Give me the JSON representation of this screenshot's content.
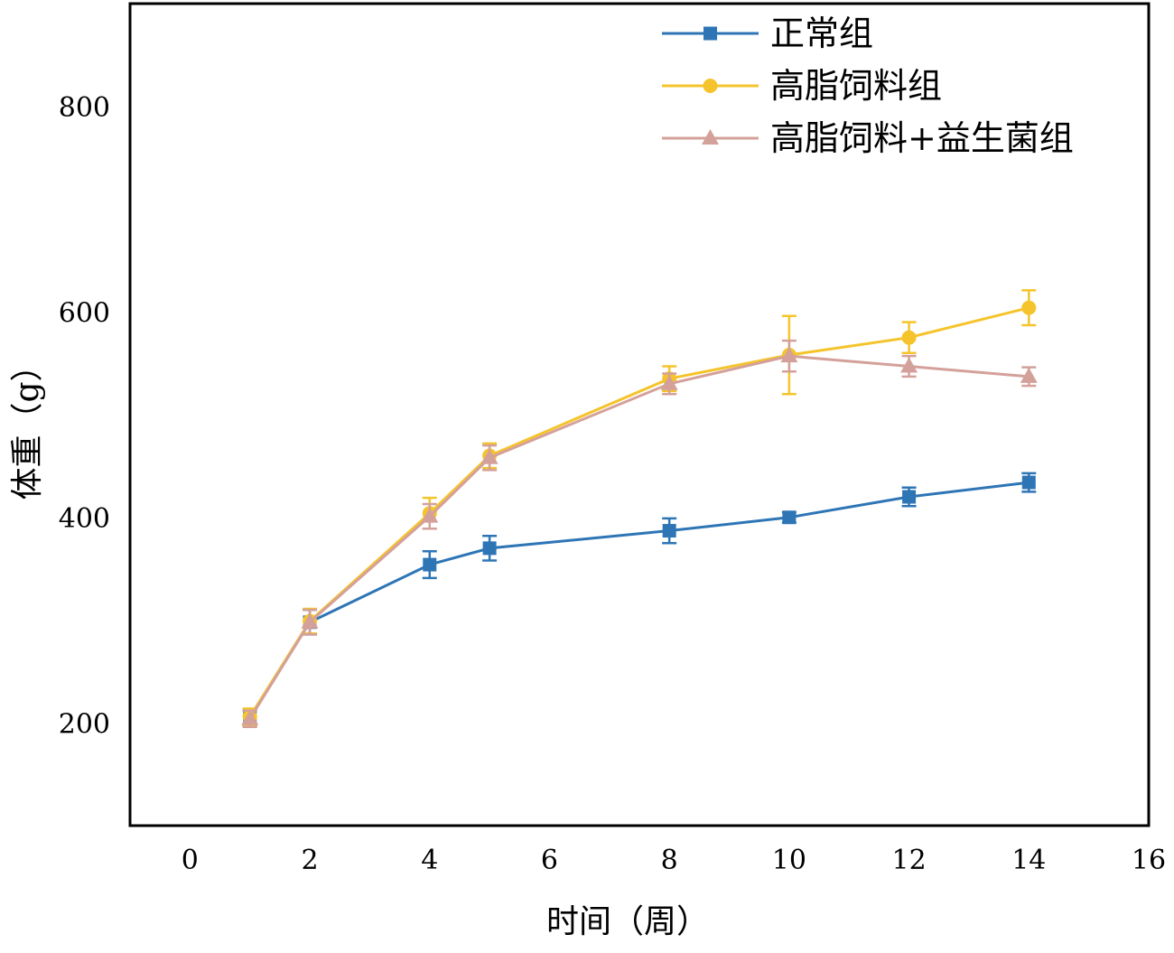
{
  "chart_data": {
    "type": "line",
    "xlabel": "时间（周）",
    "ylabel": "体重（g）",
    "xlim": [
      -1,
      16
    ],
    "ylim": [
      100,
      900
    ],
    "xticks": [
      0,
      2,
      4,
      6,
      8,
      10,
      12,
      14,
      16
    ],
    "yticks": [
      200,
      400,
      600,
      800
    ],
    "legend_position": "top-right",
    "grid": false,
    "x": [
      1,
      2,
      4,
      5,
      8,
      10,
      12,
      14
    ],
    "series": [
      {
        "name": "正常组",
        "color": "#2e75b6",
        "marker": "square",
        "values": [
          205,
          298,
          354,
          370,
          387,
          400,
          420,
          434
        ],
        "errors": [
          8,
          12,
          13,
          12,
          12,
          5,
          9,
          9
        ]
      },
      {
        "name": "高脂饲料组",
        "color": "#f5c42c",
        "marker": "circle",
        "values": [
          206,
          299,
          404,
          460,
          535,
          558,
          575,
          604
        ],
        "errors": [
          8,
          12,
          15,
          12,
          12,
          38,
          15,
          17
        ]
      },
      {
        "name": "高脂饲料+益生菌组",
        "color": "#d4a09a",
        "marker": "triangle",
        "values": [
          204,
          298,
          401,
          458,
          530,
          557,
          547,
          537
        ],
        "errors": [
          8,
          12,
          12,
          12,
          10,
          15,
          10,
          9
        ]
      }
    ]
  }
}
